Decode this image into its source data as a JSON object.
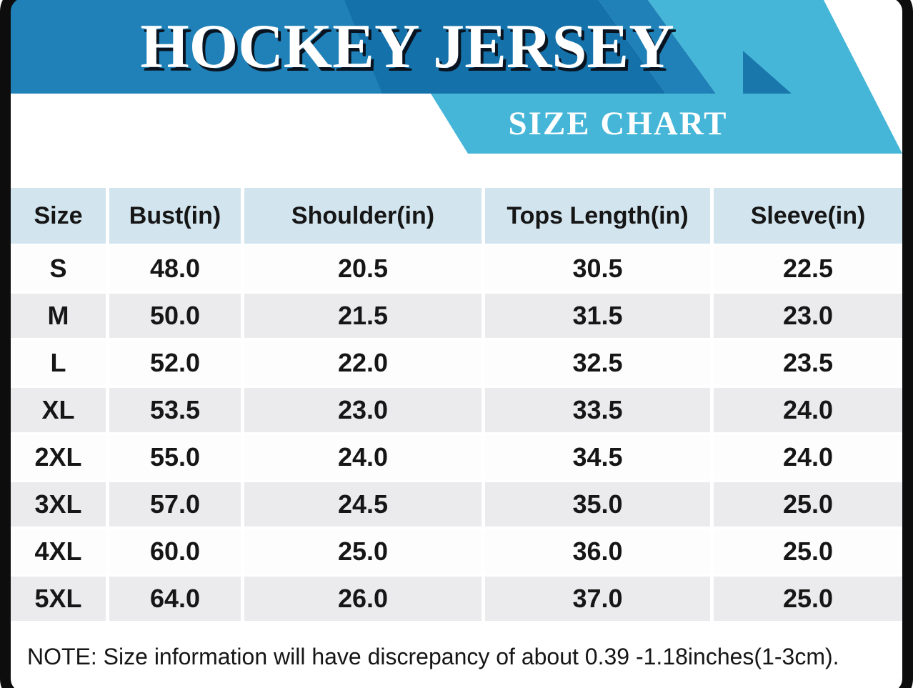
{
  "banner": {
    "title": "HOCKEY JERSEY",
    "subtitle": "SIZE CHART"
  },
  "size_table": {
    "columns": [
      "Size",
      "Bust(in)",
      "Shoulder(in)",
      "Tops Length(in)",
      "Sleeve(in)"
    ],
    "rows": [
      [
        "S",
        "48.0",
        "20.5",
        "30.5",
        "22.5"
      ],
      [
        "M",
        "50.0",
        "21.5",
        "31.5",
        "23.0"
      ],
      [
        "L",
        "52.0",
        "22.0",
        "32.5",
        "23.5"
      ],
      [
        "XL",
        "53.5",
        "23.0",
        "33.5",
        "24.0"
      ],
      [
        "2XL",
        "55.0",
        "24.0",
        "34.5",
        "24.0"
      ],
      [
        "3XL",
        "57.0",
        "24.5",
        "35.0",
        "25.0"
      ],
      [
        "4XL",
        "60.0",
        "25.0",
        "36.0",
        "25.0"
      ],
      [
        "5XL",
        "64.0",
        "26.0",
        "37.0",
        "25.0"
      ]
    ]
  },
  "note": "NOTE: Size information will have discrepancy of about 0.39 -1.18inches(1-3cm).",
  "colors": {
    "banner_dark": "#1471a9",
    "banner_light": "#1f81b7",
    "banner_accent": "#1a77ac",
    "ribbon_cyan": "#45b6d8",
    "header_cell": "#d2e4ee",
    "row_alt": "#ebebee",
    "frame": "#0d0d0d",
    "title_shadow": "#0a1420"
  },
  "chart_data": {
    "type": "table",
    "title": "HOCKEY JERSEY",
    "subtitle": "SIZE CHART",
    "columns": [
      "Size",
      "Bust(in)",
      "Shoulder(in)",
      "Tops Length(in)",
      "Sleeve(in)"
    ],
    "rows": [
      [
        "S",
        48.0,
        20.5,
        30.5,
        22.5
      ],
      [
        "M",
        50.0,
        21.5,
        31.5,
        23.0
      ],
      [
        "L",
        52.0,
        22.0,
        32.5,
        23.5
      ],
      [
        "XL",
        53.5,
        23.0,
        33.5,
        24.0
      ],
      [
        "2XL",
        55.0,
        24.0,
        34.5,
        24.0
      ],
      [
        "3XL",
        57.0,
        24.5,
        35.0,
        25.0
      ],
      [
        "4XL",
        60.0,
        25.0,
        36.0,
        25.0
      ],
      [
        "5XL",
        64.0,
        26.0,
        37.0,
        25.0
      ]
    ],
    "units": "inches",
    "note": "NOTE: Size information will have discrepancy of about 0.39 -1.18inches(1-3cm)."
  }
}
